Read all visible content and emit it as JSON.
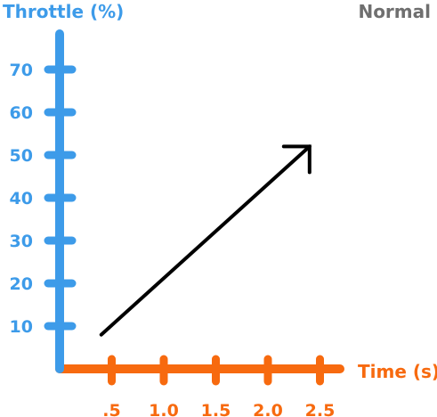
{
  "mode_label": "Normal",
  "colors": {
    "y_axis": "#3d9be9",
    "x_axis": "#f76a0f",
    "arrow": "#000000",
    "mode_label": "#6f6f6f"
  },
  "chart_data": {
    "type": "line",
    "title": "",
    "xlabel": "Time (s)",
    "ylabel": "Throttle (%)",
    "xlim": [
      0,
      2.6
    ],
    "ylim": [
      0,
      78
    ],
    "x_ticks": [
      0.5,
      1.0,
      1.5,
      2.0,
      2.5
    ],
    "x_tick_labels": [
      ".5",
      "1.0",
      "1.5",
      "2.0",
      "2.5"
    ],
    "y_ticks": [
      10,
      20,
      30,
      40,
      50,
      60,
      70
    ],
    "y_tick_labels": [
      "10",
      "20",
      "30",
      "40",
      "50",
      "60",
      "70"
    ],
    "grid": false,
    "series": [
      {
        "style": "arrow",
        "x": [
          0.4,
          2.4
        ],
        "y": [
          8,
          52
        ]
      }
    ]
  }
}
